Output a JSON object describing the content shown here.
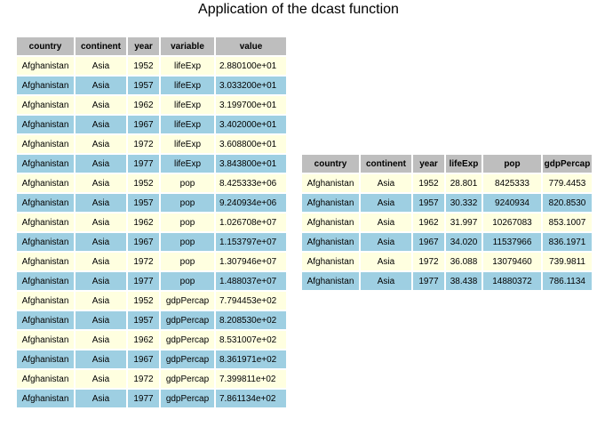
{
  "chart_data": [
    {
      "type": "table",
      "title": "Application of the dcast function",
      "columns": [
        "country",
        "continent",
        "year",
        "variable",
        "value"
      ],
      "rows": [
        [
          "Afghanistan",
          "Asia",
          "1952",
          "lifeExp",
          "2.880100e+01"
        ],
        [
          "Afghanistan",
          "Asia",
          "1957",
          "lifeExp",
          "3.033200e+01"
        ],
        [
          "Afghanistan",
          "Asia",
          "1962",
          "lifeExp",
          "3.199700e+01"
        ],
        [
          "Afghanistan",
          "Asia",
          "1967",
          "lifeExp",
          "3.402000e+01"
        ],
        [
          "Afghanistan",
          "Asia",
          "1972",
          "lifeExp",
          "3.608800e+01"
        ],
        [
          "Afghanistan",
          "Asia",
          "1977",
          "lifeExp",
          "3.843800e+01"
        ],
        [
          "Afghanistan",
          "Asia",
          "1952",
          "pop",
          "8.425333e+06"
        ],
        [
          "Afghanistan",
          "Asia",
          "1957",
          "pop",
          "9.240934e+06"
        ],
        [
          "Afghanistan",
          "Asia",
          "1962",
          "pop",
          "1.026708e+07"
        ],
        [
          "Afghanistan",
          "Asia",
          "1967",
          "pop",
          "1.153797e+07"
        ],
        [
          "Afghanistan",
          "Asia",
          "1972",
          "pop",
          "1.307946e+07"
        ],
        [
          "Afghanistan",
          "Asia",
          "1977",
          "pop",
          "1.488037e+07"
        ],
        [
          "Afghanistan",
          "Asia",
          "1952",
          "gdpPercap",
          "7.794453e+02"
        ],
        [
          "Afghanistan",
          "Asia",
          "1957",
          "gdpPercap",
          "8.208530e+02"
        ],
        [
          "Afghanistan",
          "Asia",
          "1962",
          "gdpPercap",
          "8.531007e+02"
        ],
        [
          "Afghanistan",
          "Asia",
          "1967",
          "gdpPercap",
          "8.361971e+02"
        ],
        [
          "Afghanistan",
          "Asia",
          "1972",
          "gdpPercap",
          "7.399811e+02"
        ],
        [
          "Afghanistan",
          "Asia",
          "1977",
          "gdpPercap",
          "7.861134e+02"
        ]
      ]
    },
    {
      "type": "table",
      "columns": [
        "country",
        "continent",
        "year",
        "lifeExp",
        "pop",
        "gdpPercap"
      ],
      "rows": [
        [
          "Afghanistan",
          "Asia",
          "1952",
          "28.801",
          "8425333",
          "779.4453"
        ],
        [
          "Afghanistan",
          "Asia",
          "1957",
          "30.332",
          "9240934",
          "820.8530"
        ],
        [
          "Afghanistan",
          "Asia",
          "1962",
          "31.997",
          "10267083",
          "853.1007"
        ],
        [
          "Afghanistan",
          "Asia",
          "1967",
          "34.020",
          "11537966",
          "836.1971"
        ],
        [
          "Afghanistan",
          "Asia",
          "1972",
          "36.088",
          "13079460",
          "739.9811"
        ],
        [
          "Afghanistan",
          "Asia",
          "1977",
          "38.438",
          "14880372",
          "786.1134"
        ]
      ]
    }
  ],
  "colors": {
    "header": "#bebebe",
    "row_odd": "#ffffe0",
    "row_even": "#9ecfe2"
  }
}
